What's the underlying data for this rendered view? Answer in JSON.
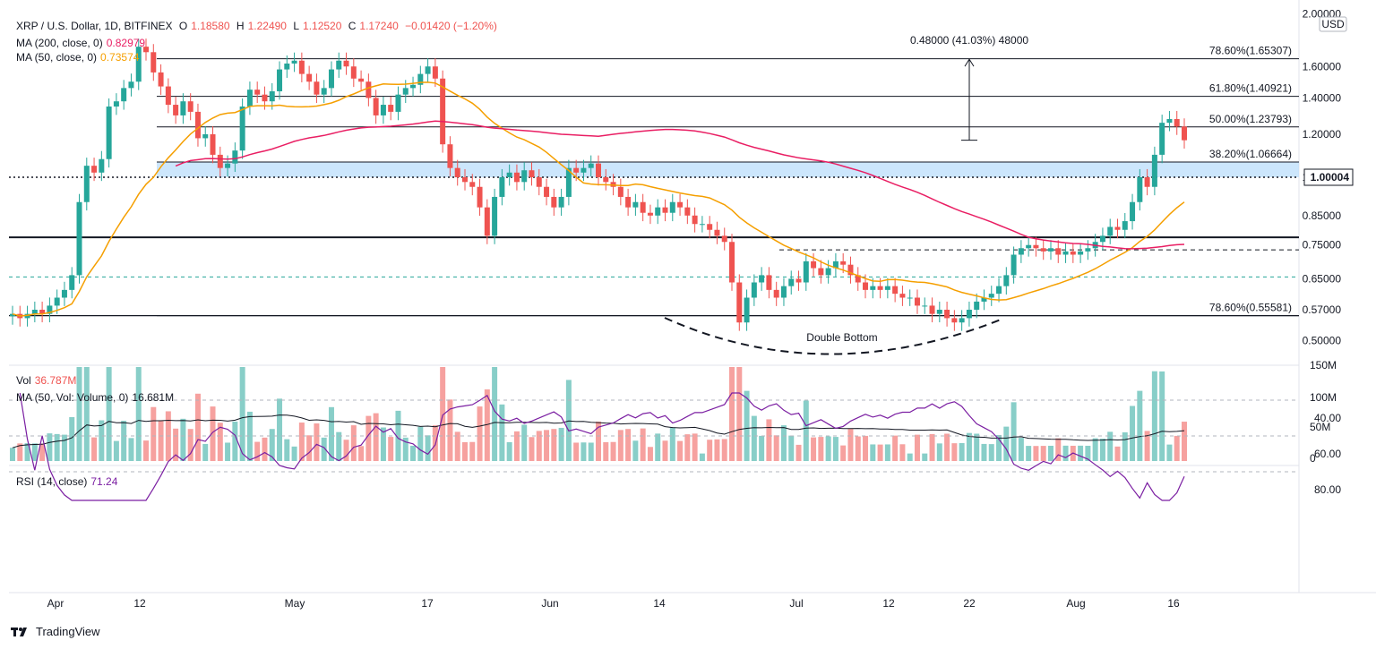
{
  "header": {
    "symbol": "XRP / U.S. Dollar, 1D, BITFINEX",
    "o_label": "O",
    "o": "1.18580",
    "h_label": "H",
    "h": "1.22490",
    "l_label": "L",
    "l": "1.12520",
    "c_label": "C",
    "c": "1.17240",
    "change": "−0.01420 (−1.20%)",
    "ma200_label": "MA (200, close, 0)",
    "ma200_value": "0.82979",
    "ma50_label": "MA (50, close, 0)",
    "ma50_value": "0.73574"
  },
  "volume_header": {
    "label": "Vol",
    "value": "36.787M",
    "ma_label": "MA (50, Vol: Volume, 0)",
    "ma_value": "16.681M"
  },
  "rsi_header": {
    "label": "RSI (14, close)",
    "value": "71.24"
  },
  "currency_label": "USD",
  "brand": {
    "name": "TradingView"
  },
  "colors": {
    "up": "#26a69a",
    "down": "#ef5350",
    "ma200": "#e91e63",
    "ma50": "#f59f00",
    "rsi": "#7b1fa2",
    "rsi_band": "#ede3fb"
  },
  "chart_data": [
    {
      "type": "candlestick",
      "title": "XRP / U.S. Dollar, 1D, BITFINEX",
      "x_ticks": [
        "Apr",
        "12",
        "May",
        "17",
        "Jun",
        "14",
        "Jul",
        "12",
        "22",
        "Aug",
        "16"
      ],
      "y_ticks": [
        "2.00000",
        "1.60000",
        "1.40000",
        "1.20000",
        "1.00000",
        "0.85000",
        "0.75000",
        "0.65000",
        "0.57000",
        "0.50000"
      ],
      "current_price": "1.17240",
      "last_price_label": "1.00004",
      "fib_levels": [
        {
          "label": "78.60%(1.65307)",
          "value": 1.65307
        },
        {
          "label": "61.80%(1.40921)",
          "value": 1.40921
        },
        {
          "label": "50.00%(1.23793)",
          "value": 1.23793
        },
        {
          "label": "38.20%(1.06664)",
          "value": 1.06664
        },
        {
          "label": "78.60%(0.55581)",
          "value": 0.55581
        }
      ],
      "measure_label": "0.48000 (41.03%) 48000",
      "annotation": "Double Bottom",
      "close_series": [
        0.56,
        0.55,
        0.56,
        0.57,
        0.56,
        0.58,
        0.6,
        0.62,
        0.66,
        0.9,
        1.05,
        1.02,
        1.08,
        1.35,
        1.38,
        1.46,
        1.5,
        1.74,
        1.7,
        1.56,
        1.47,
        1.36,
        1.3,
        1.38,
        1.32,
        1.18,
        1.2,
        1.1,
        1.04,
        1.06,
        1.12,
        1.35,
        1.45,
        1.42,
        1.38,
        1.44,
        1.58,
        1.62,
        1.64,
        1.55,
        1.5,
        1.42,
        1.46,
        1.58,
        1.64,
        1.6,
        1.52,
        1.5,
        1.4,
        1.3,
        1.36,
        1.32,
        1.42,
        1.46,
        1.48,
        1.55,
        1.6,
        1.52,
        1.15,
        1.04,
        1.0,
        0.98,
        0.96,
        0.88,
        0.78,
        0.92,
        1.0,
        1.02,
        0.98,
        1.03,
        1.0,
        0.96,
        0.92,
        0.88,
        0.92,
        1.04,
        1.02,
        1.04,
        1.06,
        1.0,
        0.98,
        0.96,
        0.92,
        0.88,
        0.9,
        0.86,
        0.85,
        0.88,
        0.86,
        0.9,
        0.88,
        0.85,
        0.82,
        0.82,
        0.8,
        0.78,
        0.76,
        0.64,
        0.54,
        0.6,
        0.64,
        0.66,
        0.62,
        0.6,
        0.63,
        0.65,
        0.64,
        0.7,
        0.68,
        0.66,
        0.68,
        0.7,
        0.69,
        0.66,
        0.64,
        0.62,
        0.63,
        0.62,
        0.63,
        0.61,
        0.6,
        0.6,
        0.58,
        0.58,
        0.56,
        0.57,
        0.55,
        0.54,
        0.55,
        0.57,
        0.59,
        0.6,
        0.61,
        0.63,
        0.66,
        0.72,
        0.74,
        0.75,
        0.74,
        0.73,
        0.74,
        0.72,
        0.73,
        0.72,
        0.73,
        0.74,
        0.76,
        0.78,
        0.81,
        0.8,
        0.83,
        0.9,
        1.0,
        0.96,
        1.1,
        1.26,
        1.28,
        1.24,
        1.17
      ]
    },
    {
      "type": "bar",
      "title": "Vol",
      "y_ticks": [
        "150M",
        "100M",
        "50M",
        "0"
      ],
      "ma_label": "MA (50, Vol: Volume, 0)"
    },
    {
      "type": "line",
      "title": "RSI (14, close)",
      "y_ticks": [
        "80.00",
        "60.00",
        "40.00"
      ],
      "band": [
        30,
        70
      ]
    }
  ]
}
